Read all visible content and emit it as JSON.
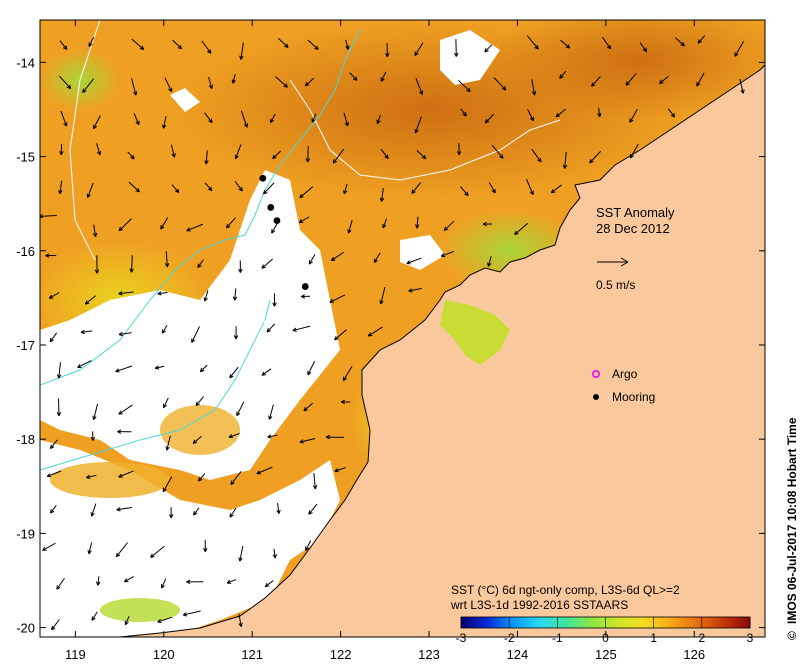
{
  "map": {
    "extent": {
      "lon_min": 118.6,
      "lon_max": 126.8,
      "lat_min": -20.1,
      "lat_max": -13.55
    },
    "lon_ticks": [
      119,
      120,
      121,
      122,
      123,
      124,
      125,
      126
    ],
    "lon_tick_labels": [
      "119",
      "120",
      "121",
      "122",
      "123",
      "124",
      "125",
      "126"
    ],
    "lat_ticks": [
      -14,
      -15,
      -16,
      -17,
      -18,
      -19,
      -20
    ],
    "lat_tick_labels": [
      "-14",
      "-15",
      "-16",
      "-17",
      "-18",
      "-19",
      "-20"
    ],
    "land_color": "#f9c89c",
    "nodata_color": "#ffffff",
    "moorings": [
      {
        "lon": 121.12,
        "lat": -15.23
      },
      {
        "lon": 121.21,
        "lat": -15.54
      },
      {
        "lon": 121.28,
        "lat": -15.68
      },
      {
        "lon": 121.6,
        "lat": -16.38
      }
    ]
  },
  "annotations": {
    "title_line1": "SST Anomaly",
    "title_line2": "28 Dec 2012",
    "vector_scale_label": "0.5 m/s",
    "legend_argo": "Argo",
    "legend_mooring": "Mooring",
    "argo_color": "#ff00ff"
  },
  "colorbar": {
    "caption_line1": "SST (°C) 6d ngt-only comp, L3S-6d QL>=2",
    "caption_line2": "wrt L3S-1d 1992-2016 SSTAARS",
    "min": -3,
    "max": 3,
    "ticks": [
      -3,
      -2,
      -1,
      0,
      1,
      2,
      3
    ],
    "tick_labels": [
      "-3",
      "-2",
      "-1",
      "0",
      "1",
      "2",
      "3"
    ],
    "colors": [
      "#08006e",
      "#0a2bd8",
      "#0a96f5",
      "#29d9f0",
      "#3ee6a0",
      "#8ee63c",
      "#d2e62a",
      "#f6dc1e",
      "#f6a616",
      "#e6700f",
      "#c4360a",
      "#8a0808"
    ]
  },
  "credit": "IMOS 06-Jul-2017 10:08 Hobart Time",
  "copyright_symbol": "©"
}
